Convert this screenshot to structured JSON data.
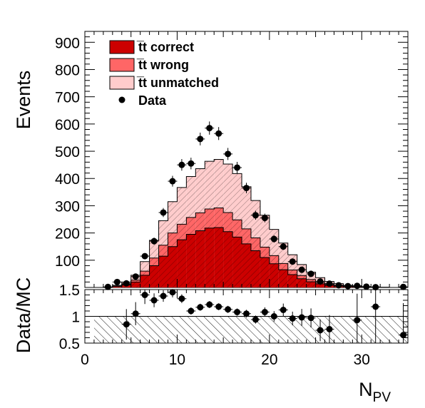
{
  "chart_data": {
    "type": "bar",
    "stacked": true,
    "title": "",
    "xlabel_main": "N",
    "xlabel_sub": "PV",
    "ylabel": "Events",
    "ratio_ylabel": "Data/MC",
    "xlim": [
      0,
      35
    ],
    "ylim": [
      0,
      940
    ],
    "ratio_ylim": [
      0.5,
      1.5
    ],
    "x_ticks": [
      "0",
      "10",
      "20",
      "30"
    ],
    "y_ticks": [
      "100",
      "200",
      "300",
      "400",
      "500",
      "600",
      "700",
      "800",
      "900"
    ],
    "ratio_ticks": [
      "0.5",
      "1",
      "1.5"
    ],
    "legend_position": "top-left",
    "colors": {
      "correct": "#cc0000",
      "wrong": "#ff6666",
      "unmatched": "#ffcccc",
      "data": "#000000"
    },
    "bin_low_edges": [
      2,
      3,
      4,
      5,
      6,
      7,
      8,
      9,
      10,
      11,
      12,
      13,
      14,
      15,
      16,
      17,
      18,
      19,
      20,
      21,
      22,
      23,
      24,
      25,
      26,
      27,
      28,
      29,
      30,
      31,
      32,
      33,
      34
    ],
    "series": [
      {
        "name": "t̅t correct",
        "key": "correct",
        "values": [
          1,
          4,
          9,
          20,
          45,
          80,
          115,
          150,
          175,
          195,
          208,
          218,
          220,
          205,
          185,
          160,
          135,
          110,
          87,
          65,
          47,
          32,
          21,
          13,
          8,
          5,
          3,
          2,
          1,
          1,
          0,
          0,
          0
        ]
      },
      {
        "name": "t̅t wrong",
        "key": "wrong",
        "values": [
          0,
          1,
          3,
          7,
          15,
          28,
          40,
          50,
          57,
          62,
          66,
          70,
          72,
          70,
          63,
          55,
          47,
          38,
          30,
          23,
          17,
          12,
          8,
          5,
          3,
          2,
          1,
          1,
          0,
          0,
          0,
          0,
          0
        ]
      },
      {
        "name": "t̅t unmatched",
        "key": "unmatched",
        "values": [
          0,
          3,
          8,
          18,
          35,
          65,
          90,
          115,
          135,
          150,
          162,
          175,
          178,
          178,
          170,
          155,
          137,
          117,
          96,
          75,
          56,
          40,
          27,
          18,
          11,
          7,
          4,
          3,
          2,
          1,
          1,
          0,
          0
        ]
      }
    ],
    "data_points": {
      "name": "Data",
      "x": [
        2.5,
        3.5,
        4.5,
        5.5,
        6.5,
        7.5,
        8.5,
        9.5,
        10.5,
        11.5,
        12.5,
        13.5,
        14.5,
        15.5,
        16.5,
        17.5,
        18.5,
        19.5,
        20.5,
        21.5,
        22.5,
        23.5,
        24.5,
        25.5,
        26.5,
        27.5,
        28.5,
        29.5,
        30.5,
        31.5,
        34.5
      ],
      "y": [
        2,
        20,
        15,
        40,
        115,
        170,
        275,
        390,
        450,
        455,
        545,
        585,
        565,
        490,
        440,
        365,
        265,
        255,
        178,
        150,
        95,
        65,
        50,
        22,
        14,
        8,
        5,
        6,
        3,
        1,
        2
      ],
      "ratio": [
        null,
        null,
        0.85,
        1.05,
        1.4,
        1.3,
        1.38,
        1.45,
        1.33,
        1.1,
        1.17,
        1.22,
        1.18,
        1.13,
        1.08,
        1.05,
        0.94,
        1.08,
        1.0,
        1.12,
        0.96,
        0.98,
        0.97,
        0.74,
        0.76,
        null,
        null,
        0.93,
        null,
        1.18,
        0.65
      ]
    }
  }
}
